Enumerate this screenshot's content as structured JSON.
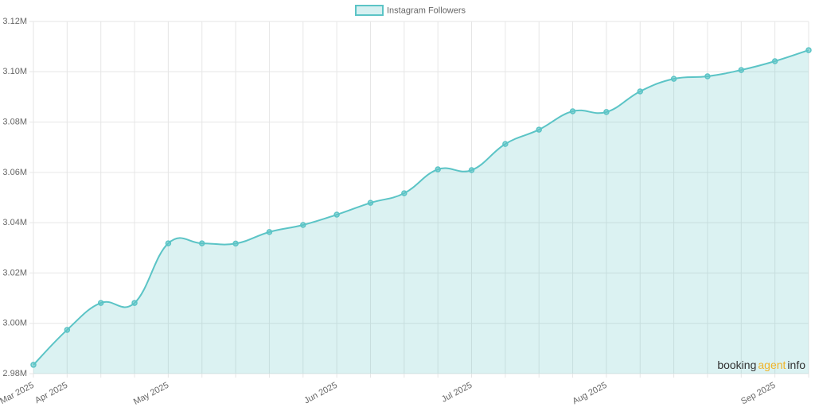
{
  "chart_data": {
    "type": "line",
    "legend": "top",
    "categories": [
      "Mar 2025",
      "Apr 2025",
      null,
      null,
      "May 2025",
      null,
      null,
      null,
      null,
      "Jun 2025",
      null,
      null,
      null,
      "Jul 2025",
      null,
      null,
      null,
      "Aug 2025",
      null,
      null,
      null,
      null,
      "Sep 2025",
      null
    ],
    "series": [
      {
        "name": "Instagram Followers",
        "color": "#5bc4c6",
        "values": [
          2.9835,
          2.9974,
          3.0081,
          3.0081,
          3.0318,
          3.0318,
          3.0317,
          3.0363,
          3.0391,
          3.0432,
          3.0479,
          3.0517,
          3.0612,
          3.0609,
          3.0713,
          3.077,
          3.0843,
          3.084,
          3.0922,
          3.0972,
          3.0982,
          3.1007,
          3.1042,
          3.1086
        ]
      }
    ],
    "ylim": [
      2.98,
      3.12
    ],
    "yticks": [
      {
        "value": 2.98,
        "label": "2.98M"
      },
      {
        "value": 3.0,
        "label": "3.00M"
      },
      {
        "value": 3.02,
        "label": "3.02M"
      },
      {
        "value": 3.04,
        "label": "3.04M"
      },
      {
        "value": 3.06,
        "label": "3.06M"
      },
      {
        "value": 3.08,
        "label": "3.08M"
      },
      {
        "value": 3.1,
        "label": "3.10M"
      },
      {
        "value": 3.12,
        "label": "3.12M"
      }
    ],
    "grid": true,
    "watermark": [
      "booking",
      "agent",
      "info"
    ]
  }
}
